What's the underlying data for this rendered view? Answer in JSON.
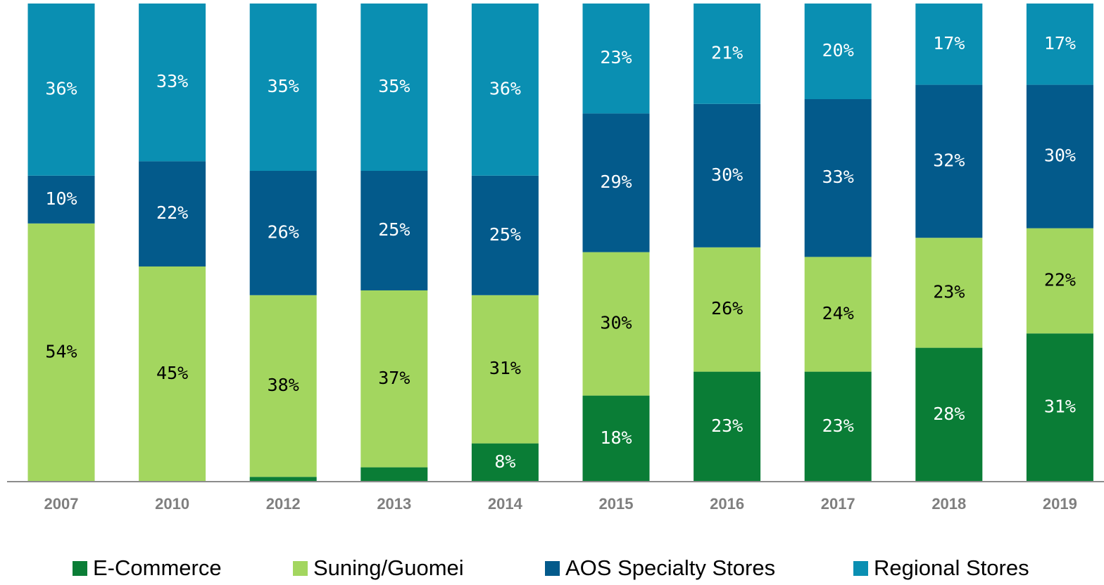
{
  "chart_data": {
    "type": "bar",
    "stacked": true,
    "categories": [
      "2007",
      "2010",
      "2012",
      "2013",
      "2014",
      "2015",
      "2016",
      "2017",
      "2018",
      "2019"
    ],
    "ylim": [
      0,
      100
    ],
    "series": [
      {
        "name": "E-Commerce",
        "color": "#0a7d36",
        "label_color": "#ffffff",
        "values": [
          null,
          null,
          1,
          3,
          8,
          18,
          23,
          23,
          28,
          31
        ],
        "value_labels": [
          null,
          null,
          "1%",
          "3%",
          "8%",
          "18%",
          "23%",
          "23%",
          "28%",
          "31%"
        ]
      },
      {
        "name": "Suning/Guomei",
        "color": "#a3d65f",
        "label_color": "#000000",
        "values": [
          54,
          45,
          38,
          37,
          31,
          30,
          26,
          24,
          23,
          22
        ],
        "value_labels": [
          "54%",
          "45%",
          "38%",
          "37%",
          "31%",
          "30%",
          "26%",
          "24%",
          "23%",
          "22%"
        ]
      },
      {
        "name": "AOS Specialty Stores",
        "color": "#035a8b",
        "label_color": "#ffffff",
        "values": [
          10,
          22,
          26,
          25,
          25,
          29,
          30,
          33,
          32,
          30
        ],
        "value_labels": [
          "10%",
          "22%",
          "26%",
          "25%",
          "25%",
          "29%",
          "30%",
          "33%",
          "32%",
          "30%"
        ]
      },
      {
        "name": "Regional Stores",
        "color": "#0a8fb2",
        "label_color": "#ffffff",
        "values": [
          36,
          33,
          35,
          35,
          36,
          23,
          21,
          20,
          17,
          17
        ],
        "value_labels": [
          "36%",
          "33%",
          "35%",
          "35%",
          "36%",
          "23%",
          "21%",
          "20%",
          "17%",
          "17%"
        ]
      }
    ],
    "legend": "bottom"
  }
}
